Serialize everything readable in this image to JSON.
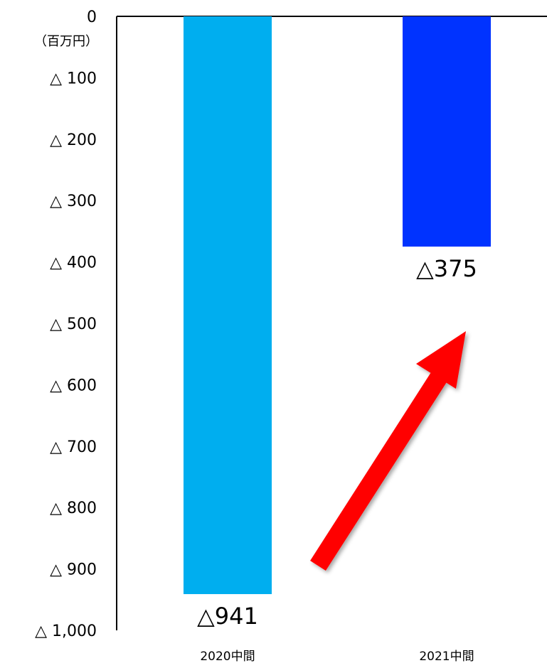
{
  "chart_data": {
    "type": "bar",
    "title": "",
    "xlabel": "",
    "ylabel": "",
    "unit_label": "（百万円）",
    "categories": [
      "2020中間",
      "2021中間"
    ],
    "values": [
      -941,
      -375
    ],
    "data_labels": [
      "△941",
      "△375"
    ],
    "ylim": [
      -1000,
      0
    ],
    "y_ticks": [
      0,
      -100,
      -200,
      -300,
      -400,
      -500,
      -600,
      -700,
      -800,
      -900,
      -1000
    ],
    "y_tick_labels": [
      "0",
      "△ 100",
      "△ 200",
      "△ 300",
      "△ 400",
      "△ 500",
      "△ 600",
      "△ 700",
      "△ 800",
      "△ 900",
      "△ 1,000"
    ],
    "bar_colors": [
      "#00aeef",
      "#0033ff"
    ],
    "arrow_color": "#ff0000",
    "grid": false,
    "legend": "none",
    "annotation": {
      "type": "arrow",
      "from_category": "2020中間",
      "to_category": "2021中間",
      "meaning": "improvement"
    }
  }
}
